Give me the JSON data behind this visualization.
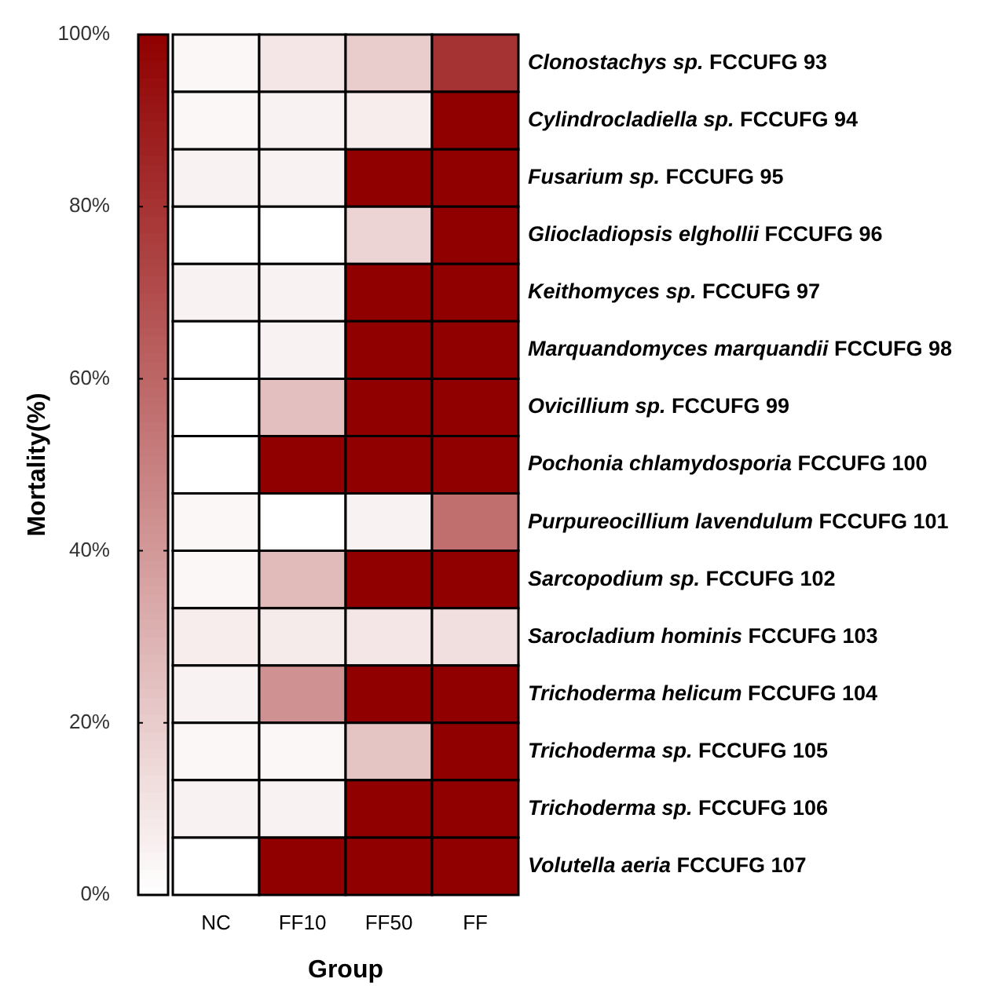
{
  "chart_data": {
    "type": "heatmap",
    "xlabel": "Group",
    "clabel": "Mortality(%)",
    "categories": [
      "NC",
      "FF10",
      "FF50",
      "FF"
    ],
    "y_categories": [
      "Clonostachys sp. FCCUFG 93",
      "Cylindrocladiella sp. FCCUFG 94",
      "Fusarium sp. FCCUFG 95",
      "Gliocladiopsis elghollii FCCUFG 96",
      "Keithomyces sp. FCCUFG 97",
      "Marquandomyces marquandii FCCUFG 98",
      "Ovicillium sp. FCCUFG 99",
      "Pochonia chlamydosporia FCCUFG 100",
      "Purpureocillium lavendulum FCCUFG 101",
      "Sarcopodium sp. FCCUFG 102",
      "Sarocladium hominis FCCUFG 103",
      "Trichoderma helicum FCCUFG 104",
      "Trichoderma sp. FCCUFG 105",
      "Trichoderma sp. FCCUFG 106",
      "Volutella aeria FCCUFG 107"
    ],
    "cells": [
      [
        3,
        10,
        20,
        80
      ],
      [
        3,
        5,
        7,
        100
      ],
      [
        5,
        5,
        100,
        100
      ],
      [
        0,
        0,
        17,
        100
      ],
      [
        5,
        5,
        100,
        100
      ],
      [
        0,
        5,
        100,
        100
      ],
      [
        0,
        25,
        100,
        100
      ],
      [
        0,
        100,
        100,
        100
      ],
      [
        3,
        0,
        5,
        57
      ],
      [
        3,
        27,
        100,
        100
      ],
      [
        7,
        8,
        10,
        13
      ],
      [
        5,
        43,
        100,
        100
      ],
      [
        3,
        3,
        23,
        100
      ],
      [
        5,
        5,
        100,
        100
      ],
      [
        0,
        100,
        100,
        100
      ]
    ],
    "colors": [
      "#ffffff",
      "#900000"
    ],
    "clim": [
      0,
      100
    ],
    "cticks": [
      {
        "value": 0,
        "label": "0%"
      },
      {
        "value": 20,
        "label": "20%"
      },
      {
        "value": 40,
        "label": "40%"
      },
      {
        "value": 60,
        "label": "60%"
      },
      {
        "value": 80,
        "label": "80%"
      },
      {
        "value": 100,
        "label": "100%"
      }
    ]
  }
}
